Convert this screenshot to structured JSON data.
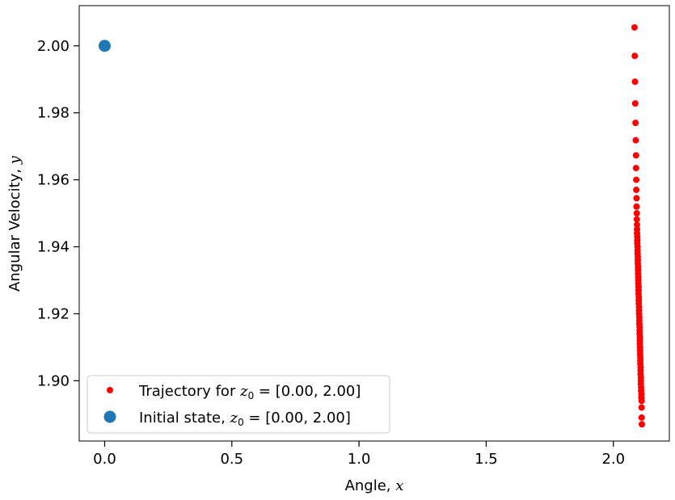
{
  "chart_data": {
    "type": "scatter",
    "xlabel": "Angle, x",
    "ylabel": "Angular Velocity, y",
    "xlim": [
      -0.1,
      2.22
    ],
    "ylim": [
      1.882,
      2.012
    ],
    "x_ticks": [
      0.0,
      0.5,
      1.0,
      1.5,
      2.0
    ],
    "x_tick_labels": [
      "0.0",
      "0.5",
      "1.0",
      "1.5",
      "2.0"
    ],
    "y_ticks": [
      1.9,
      1.92,
      1.94,
      1.96,
      1.98,
      2.0
    ],
    "y_tick_labels": [
      "1.90",
      "1.92",
      "1.94",
      "1.96",
      "1.98",
      "2.00"
    ],
    "grid": false,
    "legend_position": "lower-left",
    "series": [
      {
        "name": "Trajectory for z0 = [0.00, 2.00]",
        "color": "#ff0000",
        "marker": "small-dot",
        "x": [
          2.083,
          2.084,
          2.085,
          2.086,
          2.087,
          2.088,
          2.089,
          2.089,
          2.09,
          2.09,
          2.091,
          2.091,
          2.092,
          2.092,
          2.093,
          2.093,
          2.093,
          2.094,
          2.094,
          2.094,
          2.095,
          2.095,
          2.095,
          2.096,
          2.096,
          2.096,
          2.097,
          2.097,
          2.097,
          2.098,
          2.098,
          2.098,
          2.099,
          2.099,
          2.099,
          2.1,
          2.1,
          2.1,
          2.101,
          2.101,
          2.101,
          2.102,
          2.102,
          2.102,
          2.103,
          2.103,
          2.103,
          2.104,
          2.104,
          2.104,
          2.105,
          2.105,
          2.105,
          2.106,
          2.106,
          2.106,
          2.107,
          2.107,
          2.107,
          2.108,
          2.108,
          2.108,
          2.109,
          2.109,
          2.11,
          2.11,
          2.111,
          2.111,
          2.111,
          2.112
        ],
        "y": [
          2.0055,
          1.997,
          1.9893,
          1.9828,
          1.977,
          1.9718,
          1.9673,
          1.9635,
          1.96,
          1.957,
          1.9545,
          1.952,
          1.95,
          1.9482,
          1.9466,
          1.9452,
          1.944,
          1.943,
          1.942,
          1.941,
          1.94,
          1.939,
          1.938,
          1.937,
          1.936,
          1.935,
          1.934,
          1.933,
          1.932,
          1.931,
          1.93,
          1.929,
          1.928,
          1.927,
          1.926,
          1.925,
          1.924,
          1.923,
          1.922,
          1.921,
          1.92,
          1.919,
          1.918,
          1.917,
          1.916,
          1.915,
          1.914,
          1.913,
          1.912,
          1.911,
          1.91,
          1.909,
          1.908,
          1.907,
          1.906,
          1.905,
          1.904,
          1.903,
          1.902,
          1.901,
          1.9,
          1.899,
          1.898,
          1.897,
          1.896,
          1.895,
          1.894,
          1.892,
          1.889,
          1.887
        ]
      },
      {
        "name": "Initial state, z0 = [0.00, 2.00]",
        "color": "#1f77b4",
        "marker": "large-dot",
        "x": [
          0.0
        ],
        "y": [
          2.0
        ]
      }
    ]
  },
  "legend": {
    "entry1_prefix": "Trajectory for ",
    "entry1_math": "z",
    "entry1_sub": "0",
    "entry1_suffix": " = [0.00, 2.00]",
    "entry2_prefix": "Initial state, ",
    "entry2_math": "z",
    "entry2_sub": "0",
    "entry2_suffix": " = [0.00, 2.00]"
  },
  "axes": {
    "xlabel_text": "Angle, ",
    "xlabel_var": "x",
    "ylabel_text": "Angular Velocity, ",
    "ylabel_var": "y"
  }
}
